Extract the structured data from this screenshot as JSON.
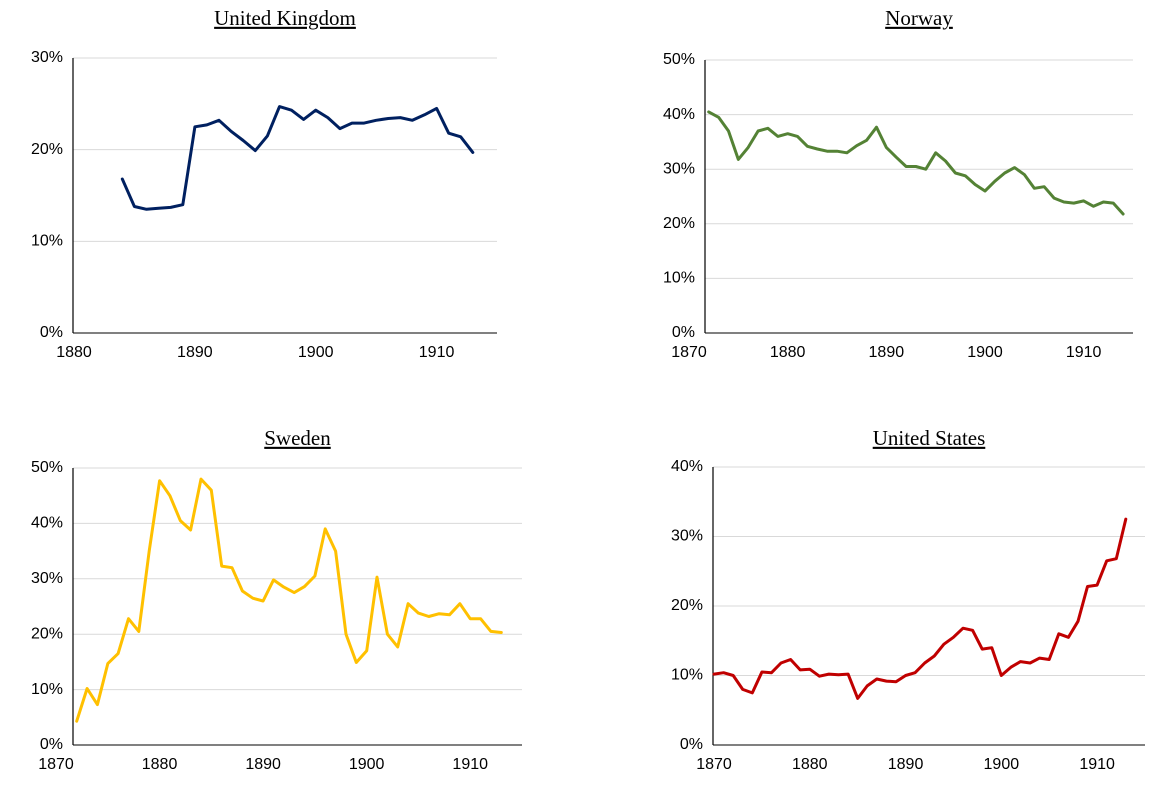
{
  "chart_data": [
    {
      "type": "line",
      "title": "United Kingdom",
      "x": [
        1884,
        1885,
        1886,
        1887,
        1888,
        1889,
        1890,
        1891,
        1892,
        1893,
        1894,
        1895,
        1896,
        1897,
        1898,
        1899,
        1900,
        1901,
        1902,
        1903,
        1904,
        1905,
        1906,
        1907,
        1908,
        1909,
        1910,
        1911,
        1912,
        1913
      ],
      "series": [
        {
          "name": "United Kingdom",
          "color": "#002060",
          "values": [
            16.8,
            13.8,
            13.5,
            13.6,
            13.7,
            14,
            22.5,
            22.7,
            23.2,
            22,
            21,
            19.9,
            21.5,
            24.7,
            24.3,
            23.3,
            24.3,
            23.5,
            22.3,
            22.9,
            22.9,
            23.2,
            23.4,
            23.5,
            23.2,
            23.8,
            24.5,
            21.8,
            21.4,
            19.7
          ]
        }
      ],
      "xlim": [
        1880,
        1915
      ],
      "xticks": [
        1880,
        1890,
        1900,
        1910
      ],
      "ylim": [
        0,
        30
      ],
      "yticks": [
        {
          "value": 0,
          "label": "0%"
        },
        {
          "value": 10,
          "label": "10%"
        },
        {
          "value": 20,
          "label": "20%"
        },
        {
          "value": 30,
          "label": "30%"
        }
      ],
      "grid": true
    },
    {
      "type": "line",
      "title": "Norway",
      "x": [
        1872,
        1873,
        1874,
        1875,
        1876,
        1877,
        1878,
        1879,
        1880,
        1881,
        1882,
        1883,
        1884,
        1885,
        1886,
        1887,
        1888,
        1889,
        1890,
        1891,
        1892,
        1893,
        1894,
        1895,
        1896,
        1897,
        1898,
        1899,
        1900,
        1901,
        1902,
        1903,
        1904,
        1905,
        1906,
        1907,
        1908,
        1909,
        1910,
        1911,
        1912,
        1913,
        1914
      ],
      "series": [
        {
          "name": "Norway",
          "color": "#548235",
          "values": [
            40.5,
            39.5,
            37,
            31.8,
            34,
            37,
            37.5,
            36,
            36.5,
            36,
            34.2,
            33.7,
            33.3,
            33.3,
            33,
            34.3,
            35.3,
            37.7,
            34,
            32.2,
            30.5,
            30.5,
            30,
            33,
            31.5,
            29.3,
            28.8,
            27.2,
            26,
            27.8,
            29.3,
            30.3,
            29,
            26.5,
            26.8,
            24.7,
            24,
            23.8,
            24.2,
            23.2,
            24,
            23.8,
            21.8
          ]
        }
      ],
      "xlim": [
        1870,
        1915
      ],
      "xticks": [
        1870,
        1880,
        1890,
        1900,
        1910
      ],
      "ylim": [
        0,
        50
      ],
      "yticks": [
        {
          "value": 0,
          "label": "0%"
        },
        {
          "value": 10,
          "label": "10%"
        },
        {
          "value": 20,
          "label": "20%"
        },
        {
          "value": 30,
          "label": "30%"
        },
        {
          "value": 40,
          "label": "40%"
        },
        {
          "value": 50,
          "label": "50%"
        }
      ],
      "grid": true
    },
    {
      "type": "line",
      "title": "Sweden",
      "x": [
        1872,
        1873,
        1874,
        1875,
        1876,
        1877,
        1878,
        1879,
        1880,
        1881,
        1882,
        1883,
        1884,
        1885,
        1886,
        1887,
        1888,
        1889,
        1890,
        1891,
        1892,
        1893,
        1894,
        1895,
        1896,
        1897,
        1898,
        1899,
        1900,
        1901,
        1902,
        1903,
        1904,
        1905,
        1906,
        1907,
        1908,
        1909,
        1910,
        1911,
        1912,
        1913
      ],
      "series": [
        {
          "name": "Sweden",
          "color": "#ffc000",
          "values": [
            4.3,
            10.2,
            7.3,
            14.7,
            16.5,
            22.8,
            20.5,
            35,
            47.7,
            45,
            40.5,
            38.8,
            48,
            46,
            32.3,
            32,
            27.8,
            26.5,
            26,
            29.8,
            28.5,
            27.5,
            28.6,
            30.5,
            39,
            35,
            20,
            14.9,
            17,
            30.3,
            20,
            17.7,
            25.5,
            23.8,
            23.2,
            23.7,
            23.5,
            25.5,
            22.8,
            22.8,
            20.5,
            20.3
          ]
        }
      ],
      "xlim": [
        1870,
        1915
      ],
      "xticks": [
        1870,
        1880,
        1890,
        1900,
        1910
      ],
      "ylim": [
        0,
        50
      ],
      "yticks": [
        {
          "value": 0,
          "label": "0%"
        },
        {
          "value": 10,
          "label": "10%"
        },
        {
          "value": 20,
          "label": "20%"
        },
        {
          "value": 30,
          "label": "30%"
        },
        {
          "value": 40,
          "label": "40%"
        },
        {
          "value": 50,
          "label": "50%"
        }
      ],
      "grid": true
    },
    {
      "type": "line",
      "title": "United States",
      "x": [
        1870,
        1871,
        1872,
        1873,
        1874,
        1875,
        1876,
        1877,
        1878,
        1879,
        1880,
        1881,
        1882,
        1883,
        1884,
        1885,
        1886,
        1887,
        1888,
        1889,
        1890,
        1891,
        1892,
        1893,
        1894,
        1895,
        1896,
        1897,
        1898,
        1899,
        1900,
        1901,
        1902,
        1903,
        1904,
        1905,
        1906,
        1907,
        1908,
        1909,
        1910,
        1911,
        1912,
        1913
      ],
      "series": [
        {
          "name": "United States",
          "color": "#c00000",
          "values": [
            10.2,
            10.4,
            10,
            8,
            7.5,
            10.5,
            10.4,
            11.8,
            12.3,
            10.8,
            10.9,
            9.9,
            10.2,
            10.1,
            10.2,
            6.7,
            8.5,
            9.5,
            9.2,
            9.1,
            10,
            10.4,
            11.8,
            12.8,
            14.5,
            15.5,
            16.8,
            16.5,
            13.8,
            14,
            10,
            11.2,
            12,
            11.8,
            12.5,
            12.3,
            16,
            15.5,
            17.8,
            22.8,
            23,
            26.5,
            26.8,
            32.5
          ]
        }
      ],
      "xlim": [
        1870,
        1915
      ],
      "xticks": [
        1870,
        1880,
        1890,
        1900,
        1910
      ],
      "ylim": [
        0,
        40
      ],
      "yticks": [
        {
          "value": 0,
          "label": "0%"
        },
        {
          "value": 10,
          "label": "10%"
        },
        {
          "value": 20,
          "label": "20%"
        },
        {
          "value": 30,
          "label": "30%"
        },
        {
          "value": 40,
          "label": "40%"
        }
      ],
      "grid": true
    }
  ]
}
